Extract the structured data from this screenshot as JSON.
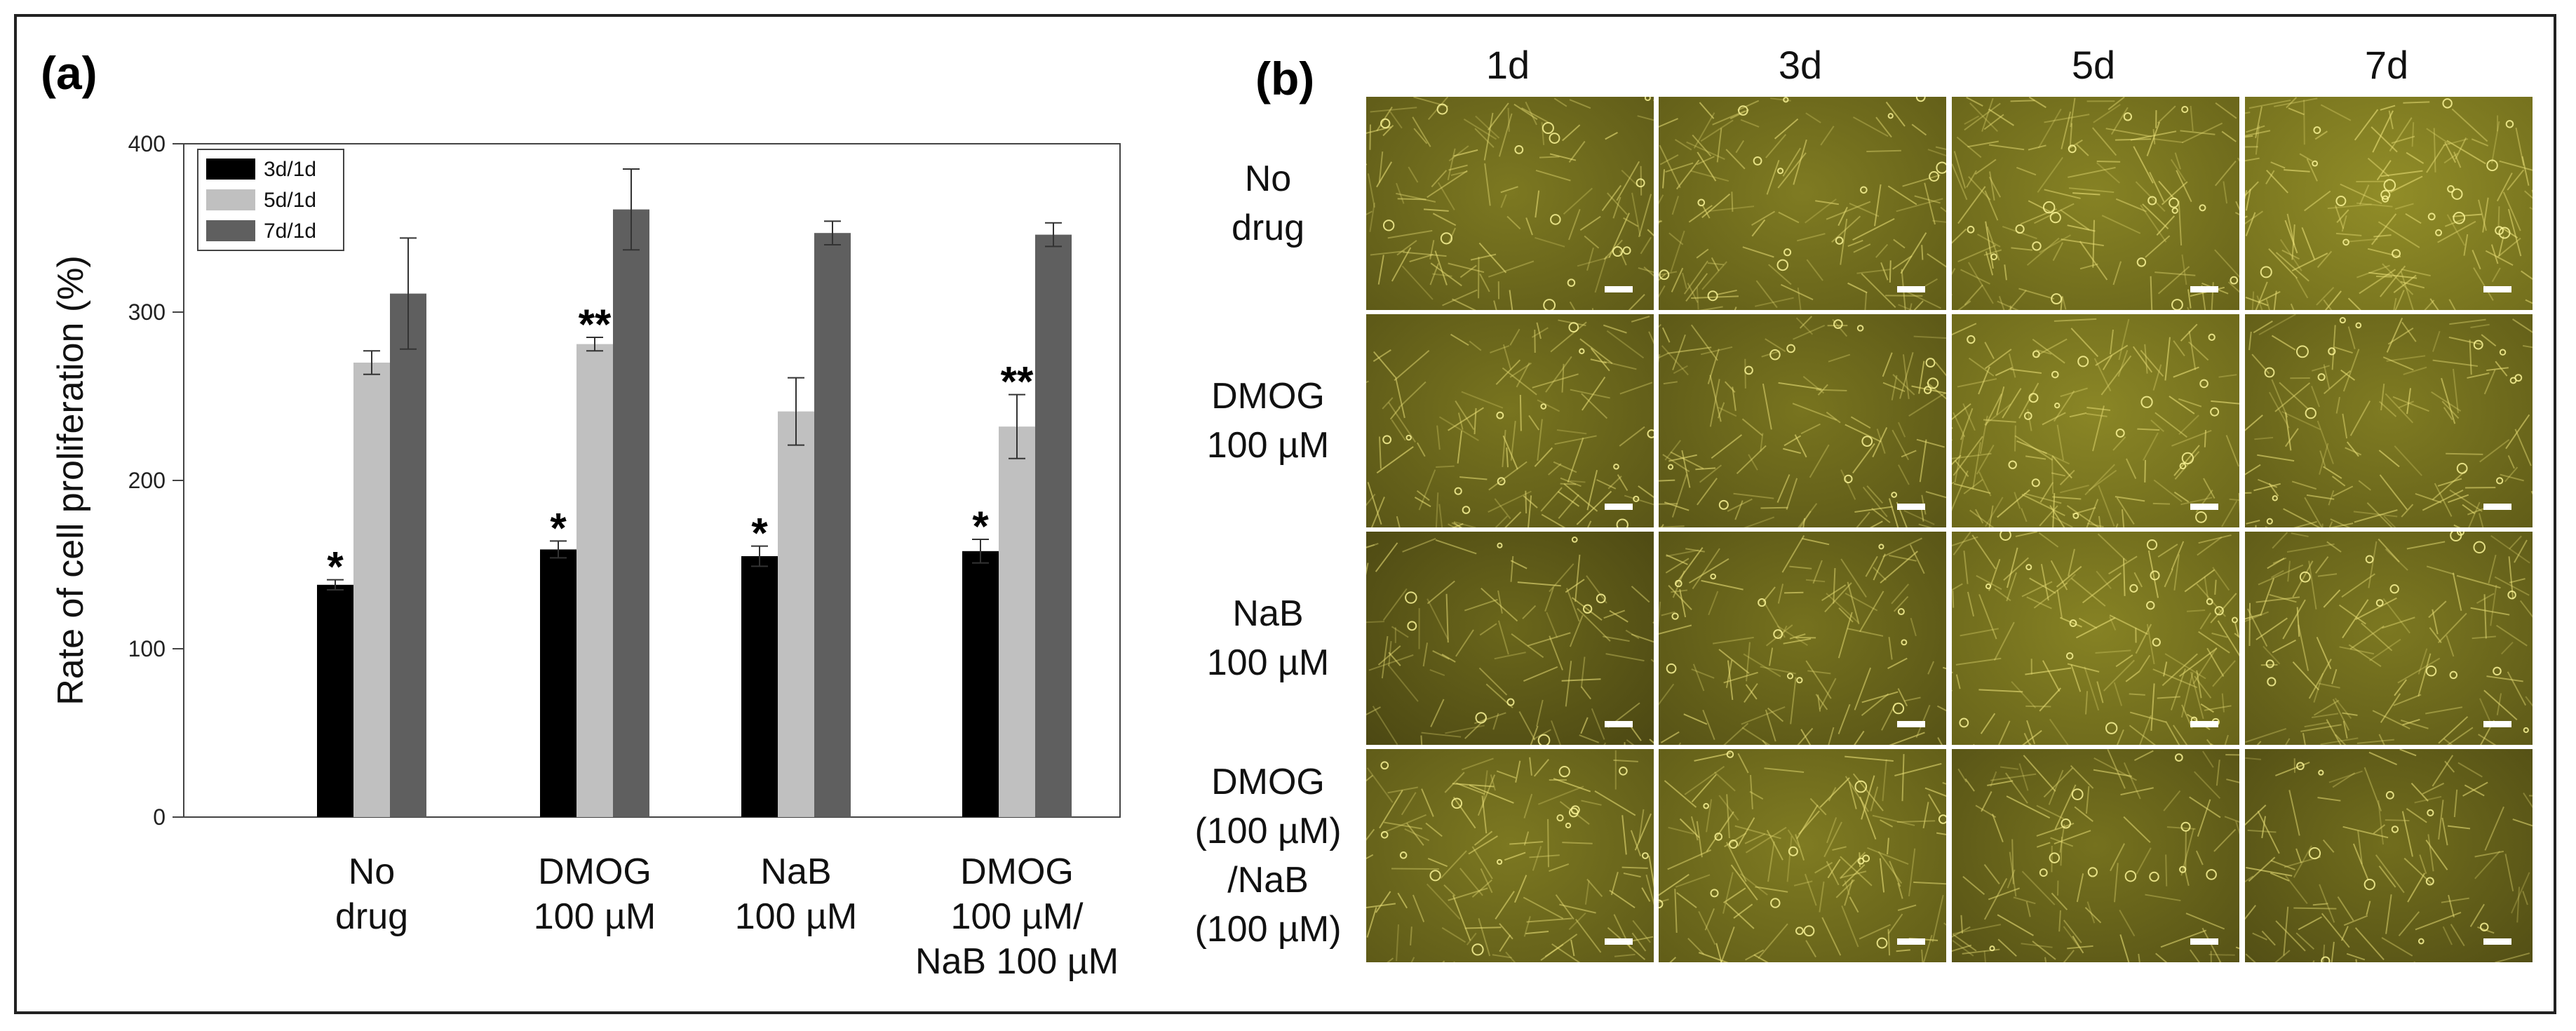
{
  "panel_a": {
    "label": "(a)",
    "chart_data": {
      "type": "bar",
      "title": "",
      "ylabel": "Rate of cell proliferation (%)",
      "xlabel": "",
      "ylim": [
        0,
        400
      ],
      "yticks": [
        0,
        100,
        200,
        300,
        400
      ],
      "ytick_labels": [
        "0",
        "100",
        "200",
        "300",
        "400"
      ],
      "categories": [
        [
          "No",
          "drug"
        ],
        [
          "DMOG",
          "100 µM"
        ],
        [
          "NaB",
          "100 µM"
        ],
        [
          "DMOG",
          "100 µM/",
          "NaB 100 µM"
        ]
      ],
      "series": [
        {
          "name": "3d/1d",
          "color": "#000000",
          "values": [
            138,
            159,
            155,
            158
          ],
          "errors": [
            3,
            5,
            6,
            7
          ]
        },
        {
          "name": "5d/1d",
          "color": "#c0c0c0",
          "values": [
            270,
            281,
            241,
            232
          ],
          "errors": [
            7,
            4,
            20,
            19
          ]
        },
        {
          "name": "7d/1d",
          "color": "#5f5f5f",
          "values": [
            311,
            361,
            347,
            346
          ],
          "errors": [
            33,
            24,
            7,
            7
          ]
        }
      ],
      "significance": [
        {
          "category": 0,
          "series": 0,
          "text": "*"
        },
        {
          "category": 1,
          "series": 0,
          "text": "*"
        },
        {
          "category": 1,
          "series": 1,
          "text": "**"
        },
        {
          "category": 2,
          "series": 0,
          "text": "*"
        },
        {
          "category": 3,
          "series": 0,
          "text": "*"
        },
        {
          "category": 3,
          "series": 1,
          "text": "**"
        }
      ],
      "legend": "top-left",
      "grid": false
    }
  },
  "panel_b": {
    "label": "(b)",
    "columns": [
      "1d",
      "3d",
      "5d",
      "7d"
    ],
    "rows": [
      [
        "No",
        "drug"
      ],
      [
        "DMOG",
        "100 µM"
      ],
      [
        "NaB",
        "100 µM"
      ],
      [
        "DMOG",
        "(100 µM)",
        "/NaB",
        "(100 µM)"
      ]
    ],
    "brightness": [
      [
        0.55,
        0.6,
        0.7,
        0.85
      ],
      [
        0.5,
        0.5,
        0.75,
        0.6
      ],
      [
        0.3,
        0.45,
        0.7,
        0.55
      ],
      [
        0.55,
        0.6,
        0.45,
        0.4
      ]
    ]
  }
}
